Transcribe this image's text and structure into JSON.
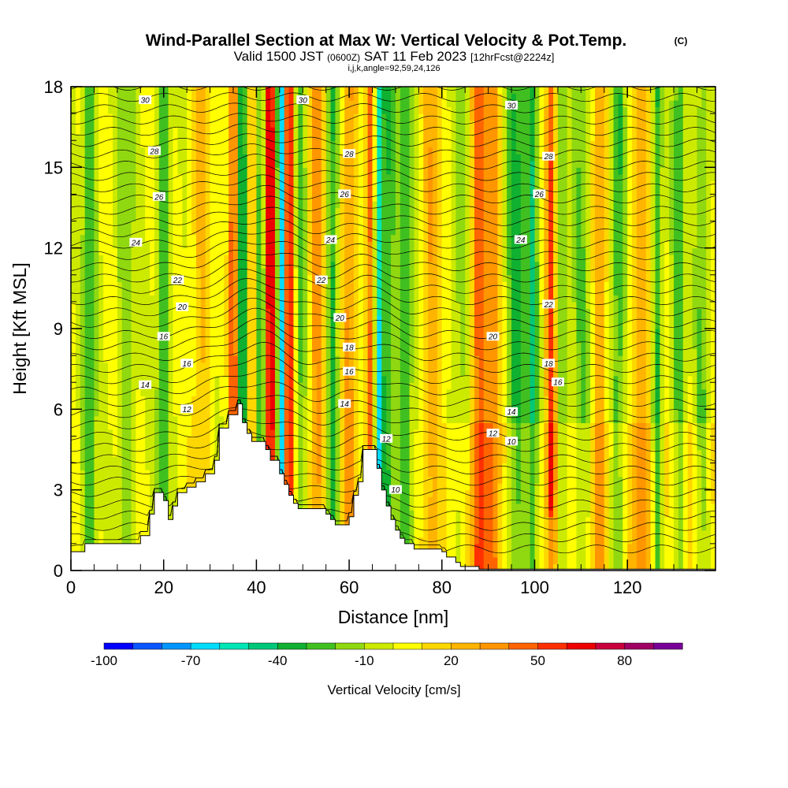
{
  "chart_data": {
    "type": "heatmap",
    "title": "Wind-Parallel Section at Max W: Vertical Velocity & Pot.Temp.",
    "title_mark": "(C)",
    "subtitle": {
      "valid_prefix": "Valid 1500 JST",
      "utc": "(0600Z)",
      "date": "SAT 11 Feb 2023",
      "forecast": "[12hrFcst@2224z]"
    },
    "indices": "i,j,k,angle=92,59,24,126",
    "xlabel": "Distance [nm]",
    "ylabel": "Height [Kft MSL]",
    "xlim": [
      0,
      139
    ],
    "ylim": [
      0,
      18
    ],
    "x_ticks": [
      0,
      20,
      40,
      60,
      80,
      100,
      120
    ],
    "y_ticks": [
      0,
      3,
      6,
      9,
      12,
      15,
      18
    ],
    "colorbar": {
      "label": "Vertical Velocity [cm/s]",
      "tick_labels": [
        "-100",
        "-70",
        "-40",
        "-10",
        "20",
        "50",
        "80"
      ],
      "colors": [
        "#0000ff",
        "#0a55ff",
        "#0096ff",
        "#00dcff",
        "#00e6b4",
        "#00c878",
        "#10b030",
        "#40c020",
        "#90d810",
        "#ccea00",
        "#ffff00",
        "#ffd700",
        "#ffb400",
        "#ff9600",
        "#ff6400",
        "#ff3000",
        "#ee0000",
        "#c8003c",
        "#a00064",
        "#780096"
      ]
    },
    "terrain": [
      [
        0,
        0.7
      ],
      [
        3,
        0.7
      ],
      [
        3,
        1
      ],
      [
        5,
        1
      ],
      [
        5,
        1
      ],
      [
        15,
        1
      ],
      [
        15,
        1.3
      ],
      [
        17,
        1.3
      ],
      [
        17,
        2.1
      ],
      [
        18,
        2.1
      ],
      [
        18,
        2.9
      ],
      [
        20,
        2.9
      ],
      [
        20,
        2.6
      ],
      [
        21,
        2.6
      ],
      [
        21,
        1.9
      ],
      [
        22,
        1.9
      ],
      [
        22,
        2.4
      ],
      [
        23,
        2.4
      ],
      [
        23,
        2.9
      ],
      [
        25,
        2.9
      ],
      [
        25,
        3.1
      ],
      [
        27,
        3.1
      ],
      [
        27,
        3.3
      ],
      [
        29,
        3.3
      ],
      [
        29,
        3.6
      ],
      [
        31,
        3.6
      ],
      [
        31,
        4.1
      ],
      [
        32,
        4.1
      ],
      [
        32,
        5.3
      ],
      [
        34,
        5.3
      ],
      [
        34,
        5.8
      ],
      [
        36,
        5.8
      ],
      [
        36,
        6.2
      ],
      [
        37,
        6.2
      ],
      [
        37,
        5.5
      ],
      [
        38,
        5.5
      ],
      [
        38,
        5.1
      ],
      [
        39,
        5.1
      ],
      [
        39,
        4.8
      ],
      [
        42,
        4.8
      ],
      [
        42,
        4.5
      ],
      [
        43,
        4.5
      ],
      [
        43,
        4.1
      ],
      [
        45,
        4.1
      ],
      [
        45,
        3.6
      ],
      [
        46,
        3.6
      ],
      [
        46,
        3.2
      ],
      [
        47,
        3.2
      ],
      [
        47,
        2.8
      ],
      [
        48,
        2.8
      ],
      [
        48,
        2.5
      ],
      [
        49,
        2.5
      ],
      [
        49,
        2.3
      ],
      [
        55,
        2.3
      ],
      [
        55,
        2.1
      ],
      [
        56,
        2.1
      ],
      [
        56,
        1.9
      ],
      [
        57,
        1.9
      ],
      [
        57,
        1.7
      ],
      [
        60,
        1.7
      ],
      [
        60,
        2
      ],
      [
        61,
        2
      ],
      [
        61,
        2.8
      ],
      [
        62,
        2.8
      ],
      [
        62,
        3.3
      ],
      [
        63,
        3.3
      ],
      [
        63,
        4.5
      ],
      [
        66,
        4.5
      ],
      [
        66,
        3.8
      ],
      [
        67,
        3.8
      ],
      [
        67,
        3
      ],
      [
        68,
        3
      ],
      [
        68,
        2.4
      ],
      [
        69,
        2.4
      ],
      [
        69,
        1.9
      ],
      [
        70,
        1.9
      ],
      [
        70,
        1.5
      ],
      [
        71,
        1.5
      ],
      [
        71,
        1.2
      ],
      [
        72,
        1.2
      ],
      [
        72,
        1
      ],
      [
        74,
        1
      ],
      [
        74,
        0.8
      ],
      [
        80,
        0.8
      ],
      [
        80,
        0.7
      ],
      [
        81,
        0.7
      ],
      [
        81,
        0.5
      ],
      [
        83,
        0.5
      ],
      [
        83,
        0.3
      ],
      [
        84,
        0.3
      ],
      [
        84,
        0.15
      ],
      [
        88,
        0.15
      ],
      [
        88,
        0.05
      ],
      [
        139,
        0.05
      ],
      [
        139,
        0
      ]
    ],
    "w_features": [
      {
        "x": 4,
        "w": 1.5,
        "v": -30
      },
      {
        "x": 12,
        "w": 2,
        "v": -20
      },
      {
        "x": 20,
        "w": 1.5,
        "v": -30
      },
      {
        "x": 28,
        "w": 2,
        "v": 20
      },
      {
        "x": 35,
        "w": 0.9,
        "v": 55
      },
      {
        "x": 37,
        "w": 0.9,
        "v": -55
      },
      {
        "x": 39,
        "w": 1.5,
        "v": 20
      },
      {
        "x": 41,
        "w": 1,
        "v": -40
      },
      {
        "x": 43,
        "w": 1.3,
        "v": 70
      },
      {
        "x": 45.3,
        "w": 0.9,
        "v": -85
      },
      {
        "x": 47,
        "w": 1.1,
        "v": 65
      },
      {
        "x": 49.5,
        "w": 1.2,
        "v": -25
      },
      {
        "x": 53,
        "w": 1.5,
        "v": 35
      },
      {
        "x": 56.5,
        "w": 1.3,
        "v": -35
      },
      {
        "x": 60,
        "w": 1.8,
        "v": 30
      },
      {
        "x": 64.5,
        "w": 1,
        "v": 40
      },
      {
        "x": 66.5,
        "w": 0.9,
        "v": -60
      },
      {
        "x": 68.5,
        "w": 1.2,
        "v": -30
      },
      {
        "x": 72,
        "w": 2,
        "v": -25
      },
      {
        "x": 78,
        "w": 2,
        "v": 25
      },
      {
        "x": 84,
        "w": 2,
        "v": -15
      },
      {
        "x": 88,
        "w": 1.5,
        "v": 45
      },
      {
        "x": 91,
        "w": 1.5,
        "v": 35
      },
      {
        "x": 96,
        "w": 2,
        "v": -35
      },
      {
        "x": 99.5,
        "w": 1.2,
        "v": -40
      },
      {
        "x": 103.5,
        "w": 1,
        "v": 50
      },
      {
        "x": 106,
        "w": 1,
        "v": -25
      },
      {
        "x": 110,
        "w": 2,
        "v": -20
      },
      {
        "x": 114,
        "w": 1.5,
        "v": 25
      },
      {
        "x": 118,
        "w": 1.5,
        "v": -30
      },
      {
        "x": 123,
        "w": 2,
        "v": 25
      },
      {
        "x": 126.5,
        "w": 1,
        "v": -35
      },
      {
        "x": 131,
        "w": 1.5,
        "v": -25
      },
      {
        "x": 136,
        "w": 1.5,
        "v": -20
      }
    ],
    "isentrope_labels": [
      {
        "x": 16,
        "y": 17.5,
        "t": "30"
      },
      {
        "x": 50,
        "y": 17.5,
        "t": "30"
      },
      {
        "x": 95,
        "y": 17.3,
        "t": "30"
      },
      {
        "x": 18,
        "y": 15.6,
        "t": "28"
      },
      {
        "x": 60,
        "y": 15.5,
        "t": "28"
      },
      {
        "x": 103,
        "y": 15.4,
        "t": "28"
      },
      {
        "x": 19,
        "y": 13.9,
        "t": "26"
      },
      {
        "x": 59,
        "y": 14.0,
        "t": "26"
      },
      {
        "x": 101,
        "y": 14.0,
        "t": "26"
      },
      {
        "x": 14,
        "y": 12.2,
        "t": "24"
      },
      {
        "x": 56,
        "y": 12.3,
        "t": "24"
      },
      {
        "x": 97,
        "y": 12.3,
        "t": "24"
      },
      {
        "x": 23,
        "y": 10.8,
        "t": "22"
      },
      {
        "x": 54,
        "y": 10.8,
        "t": "22"
      },
      {
        "x": 103,
        "y": 9.9,
        "t": "22"
      },
      {
        "x": 24,
        "y": 9.8,
        "t": "20"
      },
      {
        "x": 58,
        "y": 9.4,
        "t": "20"
      },
      {
        "x": 91,
        "y": 8.7,
        "t": "20"
      },
      {
        "x": 20,
        "y": 8.7,
        "t": "16"
      },
      {
        "x": 60,
        "y": 8.3,
        "t": "18"
      },
      {
        "x": 103,
        "y": 7.7,
        "t": "18"
      },
      {
        "x": 25,
        "y": 7.7,
        "t": "16"
      },
      {
        "x": 60,
        "y": 7.4,
        "t": "16"
      },
      {
        "x": 105,
        "y": 7.0,
        "t": "16"
      },
      {
        "x": 16,
        "y": 6.9,
        "t": "14"
      },
      {
        "x": 59,
        "y": 6.2,
        "t": "14"
      },
      {
        "x": 95,
        "y": 5.9,
        "t": "14"
      },
      {
        "x": 25,
        "y": 6.0,
        "t": "12"
      },
      {
        "x": 68,
        "y": 4.9,
        "t": "12"
      },
      {
        "x": 91,
        "y": 5.1,
        "t": "12"
      },
      {
        "x": 95,
        "y": 4.8,
        "t": "10"
      },
      {
        "x": 70,
        "y": 3.0,
        "t": "10"
      }
    ]
  }
}
